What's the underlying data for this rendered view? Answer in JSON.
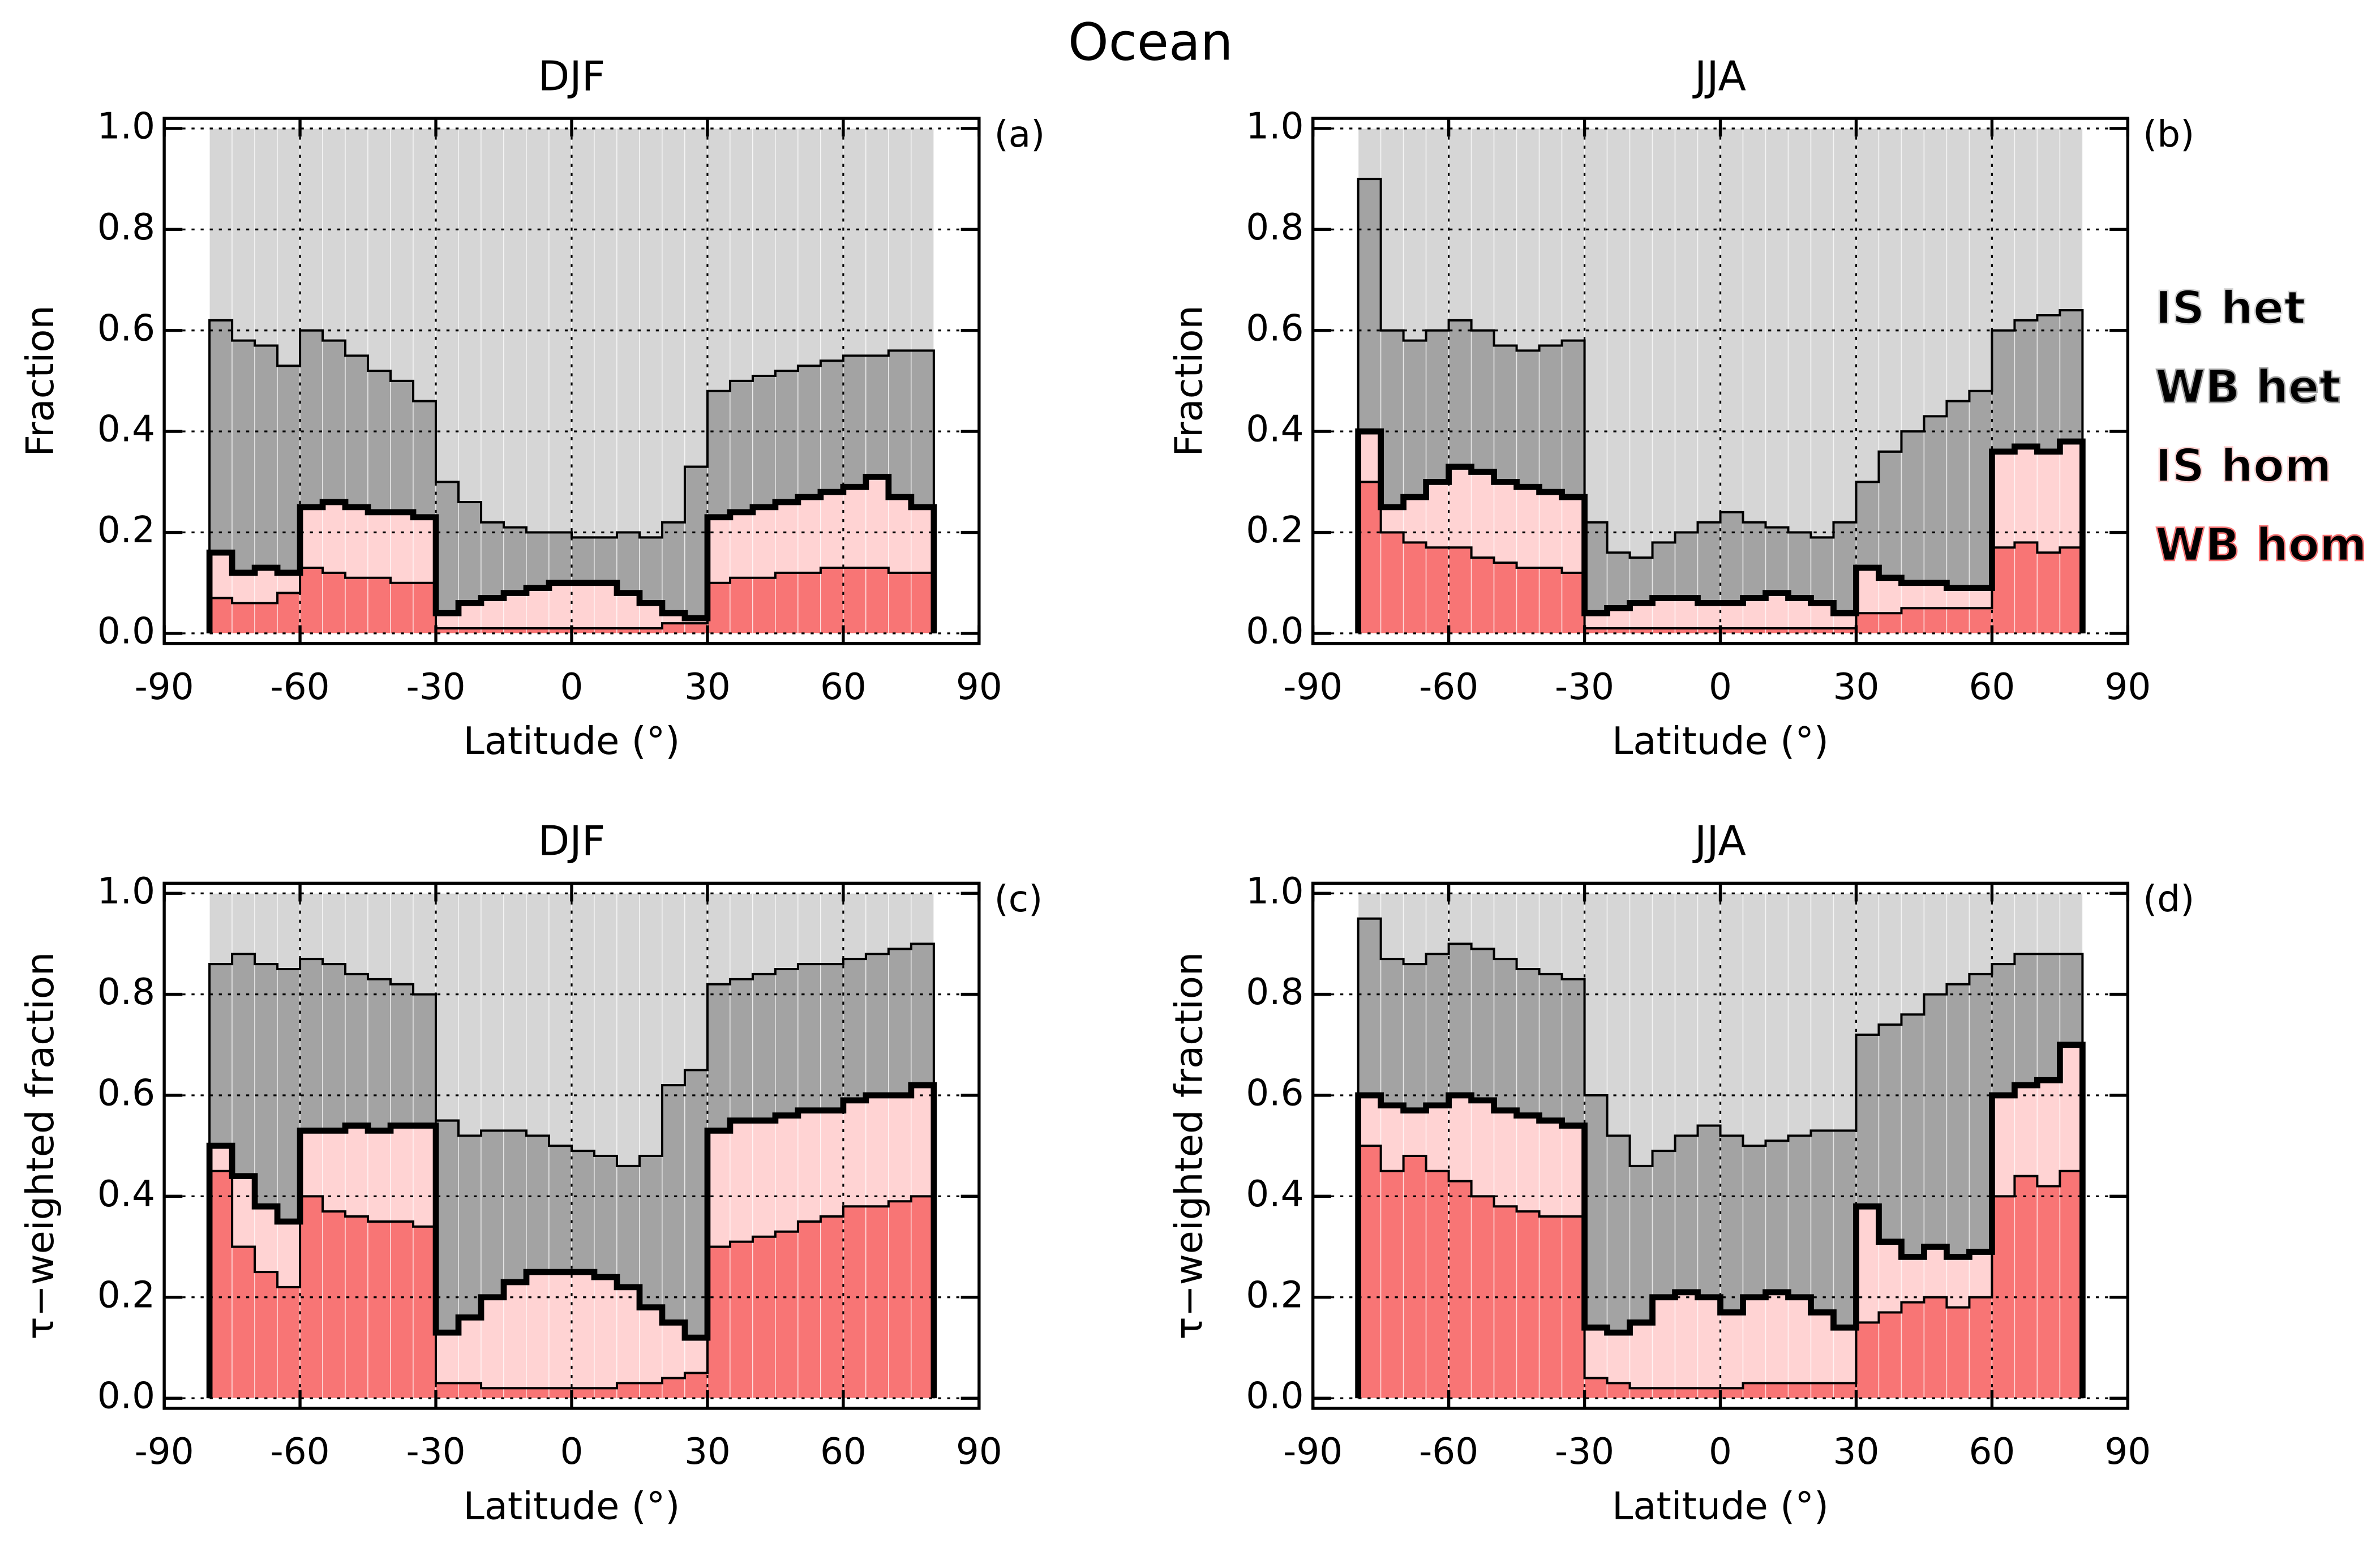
{
  "title": "Ocean",
  "chart_data": [
    {
      "type": "histogram",
      "title": "DJF",
      "panel_label": "(a)",
      "xlabel": "Latitude (°)",
      "ylabel": "Fraction",
      "bins": [
        -80,
        -75,
        -70,
        -65,
        -60,
        -55,
        -50,
        -45,
        -40,
        -35,
        -30,
        -25,
        -20,
        -15,
        -10,
        -5,
        0,
        5,
        10,
        15,
        20,
        25,
        30,
        35,
        40,
        45,
        50,
        55,
        60,
        65,
        70,
        75,
        80
      ],
      "series": [
        {
          "name": "WB hom",
          "color": "#f87575",
          "values": [
            0.07,
            0.06,
            0.06,
            0.08,
            0.13,
            0.12,
            0.11,
            0.11,
            0.1,
            0.1,
            0.01,
            0.01,
            0.01,
            0.01,
            0.01,
            0.01,
            0.01,
            0.01,
            0.01,
            0.01,
            0.02,
            0.02,
            0.1,
            0.11,
            0.11,
            0.12,
            0.12,
            0.13,
            0.13,
            0.13,
            0.12,
            0.12
          ]
        },
        {
          "name": "IS hom",
          "color": "#ffd3d3",
          "values": [
            0.09,
            0.06,
            0.07,
            0.04,
            0.12,
            0.14,
            0.14,
            0.13,
            0.14,
            0.13,
            0.03,
            0.05,
            0.06,
            0.07,
            0.08,
            0.09,
            0.09,
            0.09,
            0.07,
            0.05,
            0.02,
            0.01,
            0.13,
            0.13,
            0.14,
            0.14,
            0.15,
            0.15,
            0.16,
            0.18,
            0.15,
            0.13
          ]
        },
        {
          "name": "WB het",
          "color": "#a3a3a3",
          "values": [
            0.46,
            0.46,
            0.44,
            0.41,
            0.35,
            0.32,
            0.3,
            0.28,
            0.26,
            0.23,
            0.26,
            0.2,
            0.15,
            0.13,
            0.11,
            0.1,
            0.09,
            0.09,
            0.12,
            0.13,
            0.18,
            0.3,
            0.25,
            0.26,
            0.26,
            0.26,
            0.26,
            0.26,
            0.26,
            0.24,
            0.29,
            0.31
          ]
        },
        {
          "name": "IS het",
          "color": "#d6d6d6",
          "values": [
            0.38,
            0.42,
            0.43,
            0.47,
            0.4,
            0.42,
            0.45,
            0.48,
            0.5,
            0.54,
            0.7,
            0.74,
            0.78,
            0.79,
            0.8,
            0.8,
            0.81,
            0.81,
            0.8,
            0.81,
            0.78,
            0.67,
            0.52,
            0.5,
            0.49,
            0.48,
            0.47,
            0.46,
            0.45,
            0.45,
            0.44,
            0.44
          ]
        }
      ],
      "xlim": [
        -90,
        90
      ],
      "xticks": [
        -90,
        -60,
        -30,
        0,
        30,
        60,
        90
      ],
      "ylim": [
        -0.02,
        1.02
      ],
      "yticks": [
        {
          "value": 0,
          "label": "0.0"
        },
        {
          "value": 0.2,
          "label": "0.2"
        },
        {
          "value": 0.4,
          "label": "0.4"
        },
        {
          "value": 0.6,
          "label": "0.6"
        },
        {
          "value": 0.8,
          "label": "0.8"
        },
        {
          "value": 1,
          "label": "1.0"
        }
      ],
      "grid": true,
      "legend": false
    },
    {
      "type": "histogram",
      "title": "JJA",
      "panel_label": "(b)",
      "xlabel": "Latitude (°)",
      "ylabel": "Fraction",
      "bins": [
        -80,
        -75,
        -70,
        -65,
        -60,
        -55,
        -50,
        -45,
        -40,
        -35,
        -30,
        -25,
        -20,
        -15,
        -10,
        -5,
        0,
        5,
        10,
        15,
        20,
        25,
        30,
        35,
        40,
        45,
        50,
        55,
        60,
        65,
        70,
        75,
        80
      ],
      "series": [
        {
          "name": "WB hom",
          "color": "#f87575",
          "values": [
            0.3,
            0.2,
            0.18,
            0.17,
            0.17,
            0.15,
            0.14,
            0.13,
            0.13,
            0.12,
            0.01,
            0.01,
            0.01,
            0.01,
            0.01,
            0.01,
            0.01,
            0.01,
            0.01,
            0.01,
            0.01,
            0.01,
            0.04,
            0.04,
            0.05,
            0.05,
            0.05,
            0.05,
            0.17,
            0.18,
            0.16,
            0.17
          ]
        },
        {
          "name": "IS hom",
          "color": "#ffd3d3",
          "values": [
            0.1,
            0.05,
            0.09,
            0.13,
            0.16,
            0.17,
            0.16,
            0.16,
            0.15,
            0.15,
            0.03,
            0.04,
            0.05,
            0.06,
            0.06,
            0.05,
            0.05,
            0.06,
            0.07,
            0.06,
            0.05,
            0.03,
            0.09,
            0.07,
            0.05,
            0.05,
            0.04,
            0.04,
            0.19,
            0.19,
            0.2,
            0.21
          ]
        },
        {
          "name": "WB het",
          "color": "#a3a3a3",
          "values": [
            0.5,
            0.35,
            0.31,
            0.3,
            0.29,
            0.28,
            0.27,
            0.27,
            0.29,
            0.31,
            0.18,
            0.11,
            0.09,
            0.11,
            0.13,
            0.16,
            0.18,
            0.15,
            0.13,
            0.13,
            0.13,
            0.18,
            0.17,
            0.25,
            0.3,
            0.33,
            0.37,
            0.39,
            0.24,
            0.25,
            0.27,
            0.26
          ]
        },
        {
          "name": "IS het",
          "color": "#d6d6d6",
          "values": [
            0.1,
            0.4,
            0.42,
            0.4,
            0.38,
            0.4,
            0.43,
            0.44,
            0.43,
            0.42,
            0.78,
            0.84,
            0.85,
            0.82,
            0.8,
            0.78,
            0.76,
            0.78,
            0.79,
            0.8,
            0.81,
            0.78,
            0.7,
            0.64,
            0.6,
            0.57,
            0.54,
            0.52,
            0.4,
            0.38,
            0.37,
            0.36
          ]
        }
      ],
      "xlim": [
        -90,
        90
      ],
      "xticks": [
        -90,
        -60,
        -30,
        0,
        30,
        60,
        90
      ],
      "ylim": [
        -0.02,
        1.02
      ],
      "yticks": [
        {
          "value": 0,
          "label": "0.0"
        },
        {
          "value": 0.2,
          "label": "0.2"
        },
        {
          "value": 0.4,
          "label": "0.4"
        },
        {
          "value": 0.6,
          "label": "0.6"
        },
        {
          "value": 0.8,
          "label": "0.8"
        },
        {
          "value": 1,
          "label": "1.0"
        }
      ],
      "grid": true,
      "legend": "right"
    },
    {
      "type": "histogram",
      "title": "DJF",
      "panel_label": "(c)",
      "xlabel": "Latitude (°)",
      "ylabel": "τ−weighted fraction",
      "bins": [
        -80,
        -75,
        -70,
        -65,
        -60,
        -55,
        -50,
        -45,
        -40,
        -35,
        -30,
        -25,
        -20,
        -15,
        -10,
        -5,
        0,
        5,
        10,
        15,
        20,
        25,
        30,
        35,
        40,
        45,
        50,
        55,
        60,
        65,
        70,
        75,
        80
      ],
      "series": [
        {
          "name": "WB hom",
          "color": "#f87575",
          "values": [
            0.45,
            0.3,
            0.25,
            0.22,
            0.4,
            0.37,
            0.36,
            0.35,
            0.35,
            0.34,
            0.03,
            0.03,
            0.02,
            0.02,
            0.02,
            0.02,
            0.02,
            0.02,
            0.03,
            0.03,
            0.04,
            0.05,
            0.3,
            0.31,
            0.32,
            0.33,
            0.35,
            0.36,
            0.38,
            0.38,
            0.39,
            0.4
          ]
        },
        {
          "name": "IS hom",
          "color": "#ffd3d3",
          "values": [
            0.05,
            0.14,
            0.13,
            0.13,
            0.13,
            0.16,
            0.18,
            0.18,
            0.19,
            0.2,
            0.1,
            0.13,
            0.18,
            0.21,
            0.23,
            0.23,
            0.23,
            0.22,
            0.19,
            0.15,
            0.11,
            0.07,
            0.23,
            0.24,
            0.23,
            0.23,
            0.22,
            0.21,
            0.21,
            0.22,
            0.21,
            0.22
          ]
        },
        {
          "name": "WB het",
          "color": "#a3a3a3",
          "values": [
            0.36,
            0.44,
            0.48,
            0.5,
            0.34,
            0.33,
            0.3,
            0.3,
            0.28,
            0.26,
            0.42,
            0.36,
            0.33,
            0.3,
            0.27,
            0.25,
            0.24,
            0.24,
            0.24,
            0.3,
            0.47,
            0.53,
            0.29,
            0.28,
            0.29,
            0.29,
            0.29,
            0.29,
            0.28,
            0.28,
            0.29,
            0.28
          ]
        },
        {
          "name": "IS het",
          "color": "#d6d6d6",
          "values": [
            0.14,
            0.12,
            0.14,
            0.15,
            0.13,
            0.14,
            0.16,
            0.17,
            0.18,
            0.2,
            0.45,
            0.48,
            0.47,
            0.47,
            0.48,
            0.5,
            0.51,
            0.52,
            0.54,
            0.52,
            0.38,
            0.35,
            0.18,
            0.17,
            0.16,
            0.15,
            0.14,
            0.14,
            0.13,
            0.12,
            0.11,
            0.1
          ]
        }
      ],
      "xlim": [
        -90,
        90
      ],
      "xticks": [
        -90,
        -60,
        -30,
        0,
        30,
        60,
        90
      ],
      "ylim": [
        -0.02,
        1.02
      ],
      "yticks": [
        {
          "value": 0,
          "label": "0.0"
        },
        {
          "value": 0.2,
          "label": "0.2"
        },
        {
          "value": 0.4,
          "label": "0.4"
        },
        {
          "value": 0.6,
          "label": "0.6"
        },
        {
          "value": 0.8,
          "label": "0.8"
        },
        {
          "value": 1,
          "label": "1.0"
        }
      ],
      "grid": true,
      "legend": false
    },
    {
      "type": "histogram",
      "title": "JJA",
      "panel_label": "(d)",
      "xlabel": "Latitude (°)",
      "ylabel": "τ−weighted fraction",
      "bins": [
        -80,
        -75,
        -70,
        -65,
        -60,
        -55,
        -50,
        -45,
        -40,
        -35,
        -30,
        -25,
        -20,
        -15,
        -10,
        -5,
        0,
        5,
        10,
        15,
        20,
        25,
        30,
        35,
        40,
        45,
        50,
        55,
        60,
        65,
        70,
        75,
        80
      ],
      "series": [
        {
          "name": "WB hom",
          "color": "#f87575",
          "values": [
            0.5,
            0.45,
            0.48,
            0.45,
            0.43,
            0.4,
            0.38,
            0.37,
            0.36,
            0.36,
            0.04,
            0.03,
            0.02,
            0.02,
            0.02,
            0.02,
            0.02,
            0.03,
            0.03,
            0.03,
            0.03,
            0.03,
            0.15,
            0.17,
            0.19,
            0.2,
            0.18,
            0.2,
            0.4,
            0.44,
            0.42,
            0.45
          ]
        },
        {
          "name": "IS hom",
          "color": "#ffd3d3",
          "values": [
            0.1,
            0.13,
            0.09,
            0.13,
            0.17,
            0.19,
            0.19,
            0.19,
            0.19,
            0.18,
            0.1,
            0.1,
            0.13,
            0.18,
            0.19,
            0.18,
            0.15,
            0.17,
            0.18,
            0.17,
            0.14,
            0.11,
            0.23,
            0.14,
            0.09,
            0.1,
            0.1,
            0.09,
            0.2,
            0.18,
            0.21,
            0.25
          ]
        },
        {
          "name": "WB het",
          "color": "#a3a3a3",
          "values": [
            0.35,
            0.29,
            0.29,
            0.3,
            0.3,
            0.3,
            0.3,
            0.29,
            0.29,
            0.29,
            0.46,
            0.39,
            0.31,
            0.29,
            0.31,
            0.34,
            0.35,
            0.3,
            0.3,
            0.32,
            0.36,
            0.39,
            0.34,
            0.43,
            0.48,
            0.5,
            0.54,
            0.55,
            0.26,
            0.26,
            0.25,
            0.18
          ]
        },
        {
          "name": "IS het",
          "color": "#d6d6d6",
          "values": [
            0.05,
            0.13,
            0.14,
            0.12,
            0.1,
            0.11,
            0.13,
            0.15,
            0.16,
            0.17,
            0.4,
            0.48,
            0.54,
            0.51,
            0.48,
            0.46,
            0.48,
            0.5,
            0.49,
            0.48,
            0.47,
            0.47,
            0.28,
            0.26,
            0.24,
            0.2,
            0.18,
            0.16,
            0.14,
            0.12,
            0.12,
            0.12
          ]
        }
      ],
      "xlim": [
        -90,
        90
      ],
      "xticks": [
        -90,
        -60,
        -30,
        0,
        30,
        60,
        90
      ],
      "ylim": [
        -0.02,
        1.02
      ],
      "yticks": [
        {
          "value": 0,
          "label": "0.0"
        },
        {
          "value": 0.2,
          "label": "0.2"
        },
        {
          "value": 0.4,
          "label": "0.4"
        },
        {
          "value": 0.6,
          "label": "0.6"
        },
        {
          "value": 0.8,
          "label": "0.8"
        },
        {
          "value": 1,
          "label": "1.0"
        }
      ],
      "grid": true,
      "legend": false
    }
  ]
}
